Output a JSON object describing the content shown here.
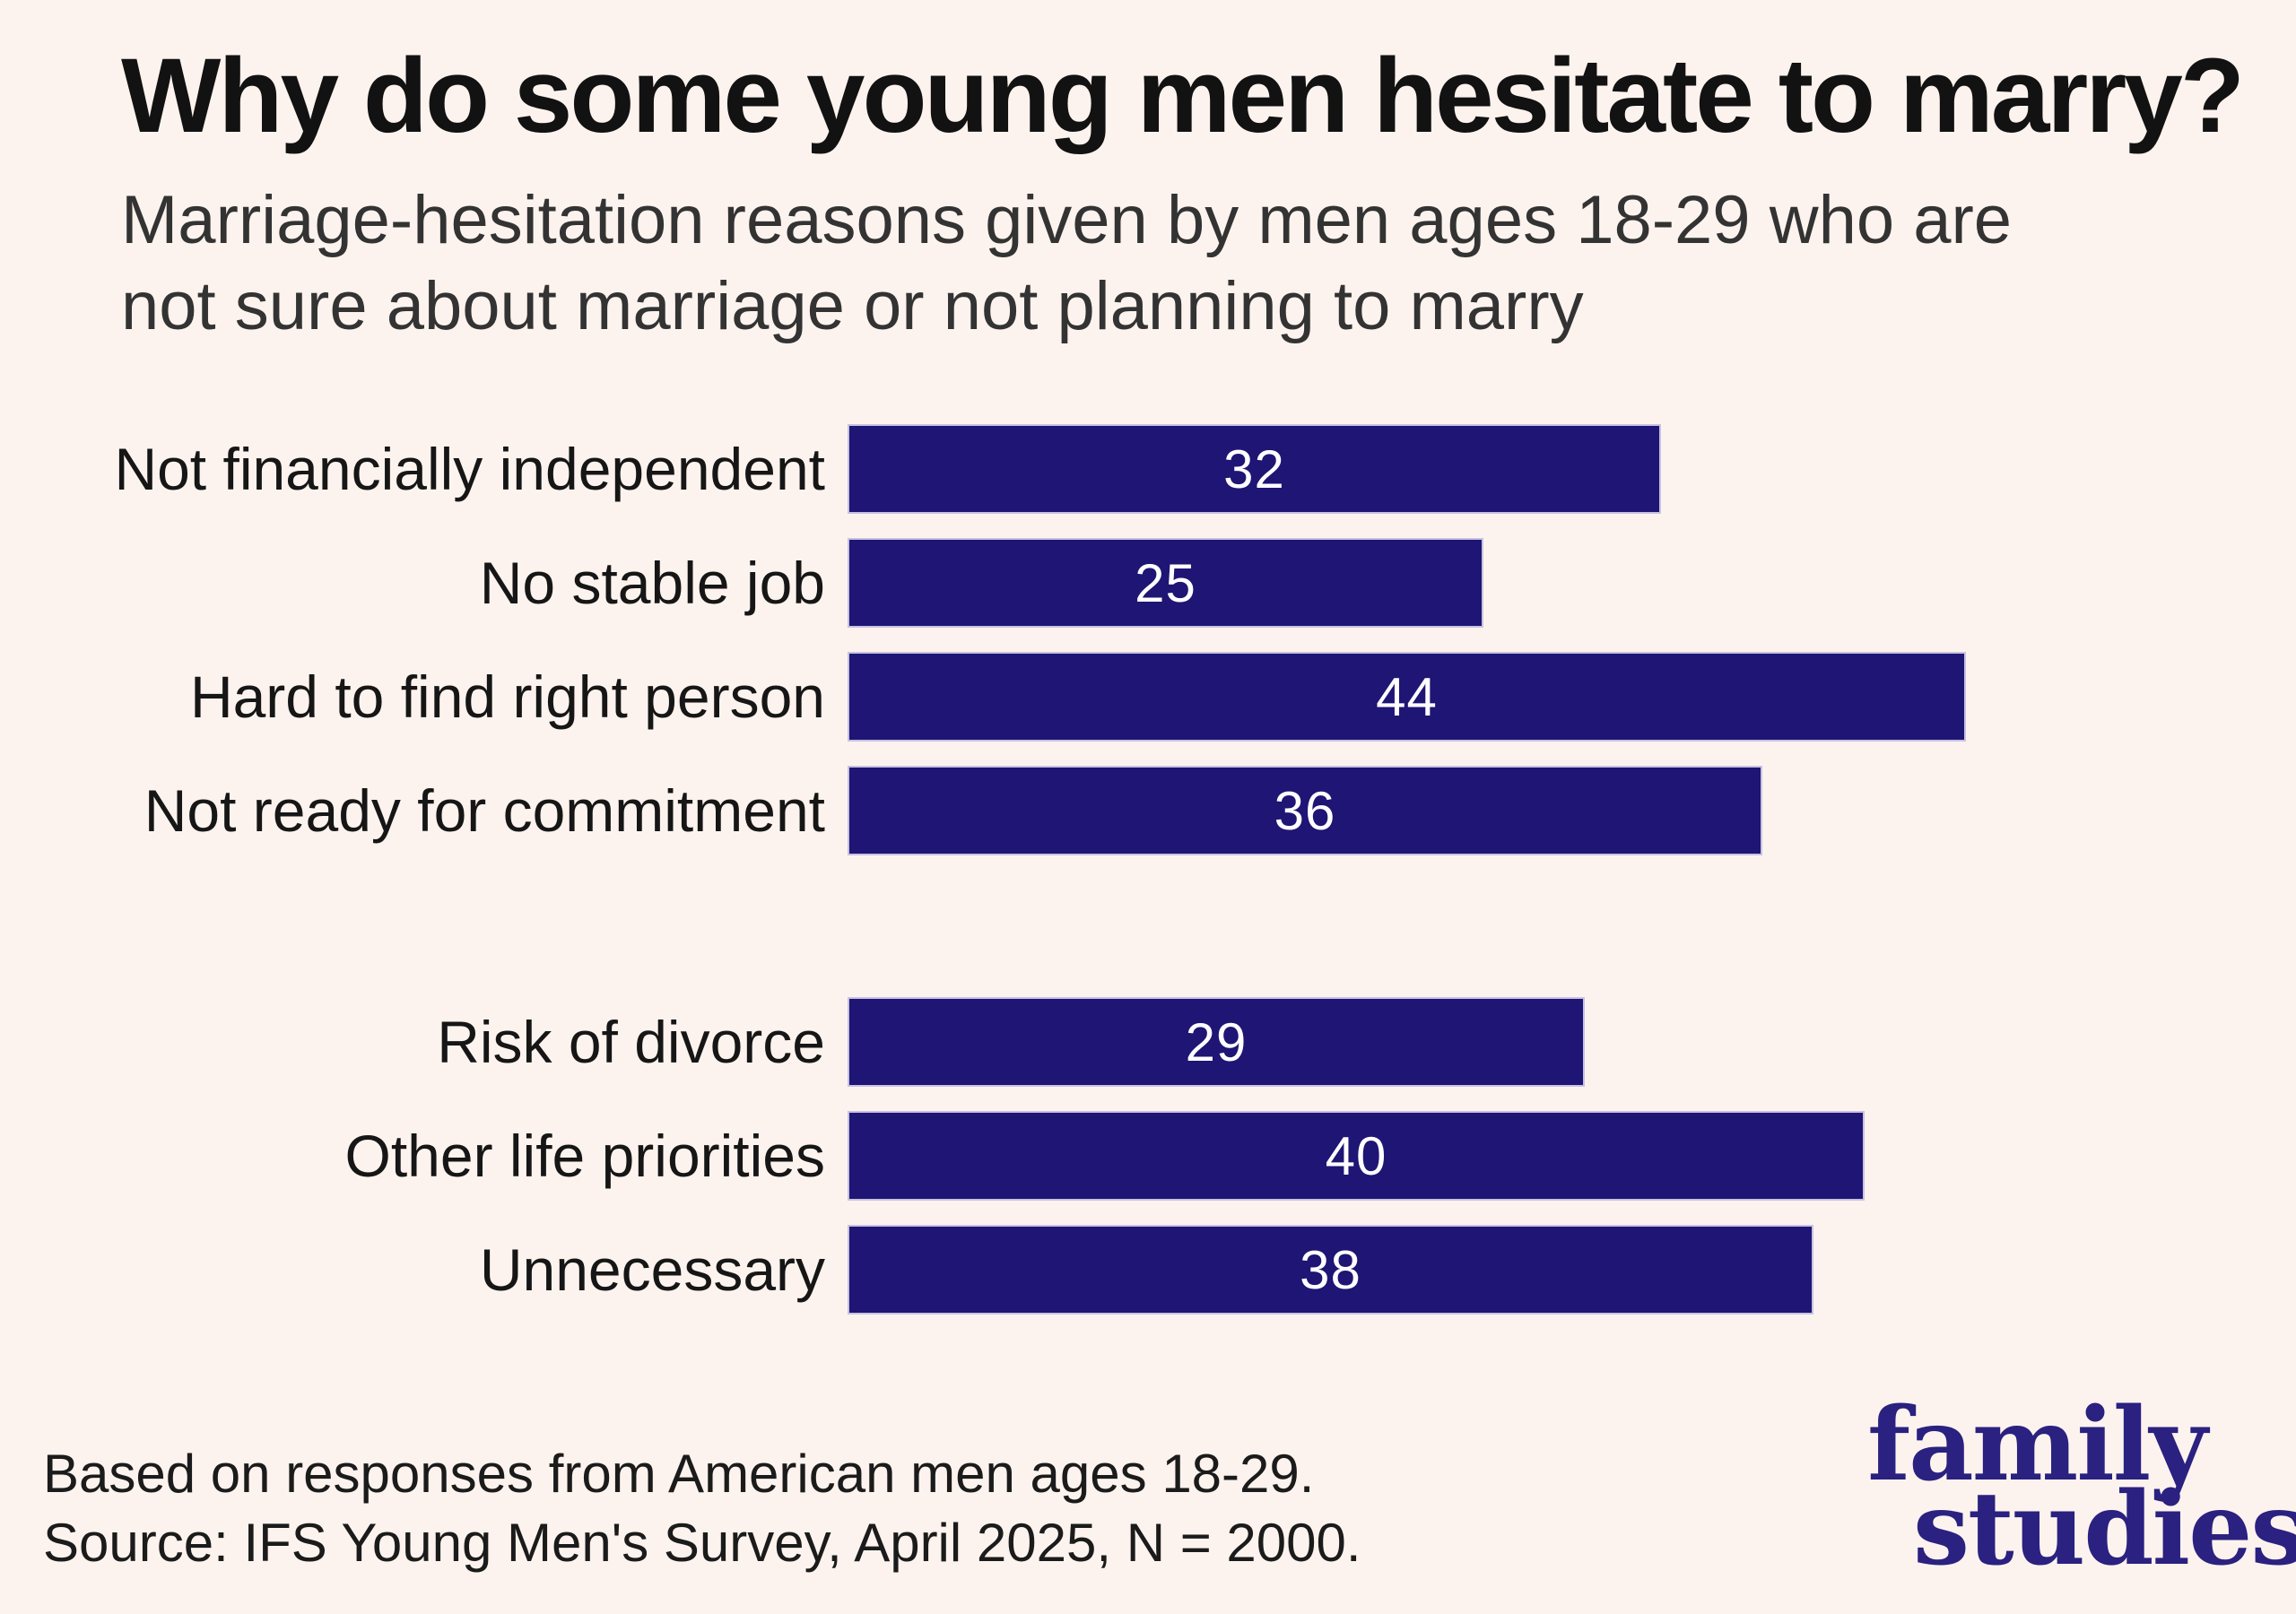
{
  "page": {
    "background_color": "#fdf3ee"
  },
  "header": {
    "title": "Why do some young men hesitate to marry?",
    "subtitle_line1": "Marriage-hesitation reasons given by men ages 18-29 who are",
    "subtitle_line2": "not sure about marriage or not planning to marry"
  },
  "chart_data": {
    "type": "bar",
    "orientation": "horizontal",
    "title": "Why do some young men hesitate to marry?",
    "subtitle": "Marriage-hesitation reasons given by men ages 18-29 who are not sure about marriage or not planning to marry",
    "xlabel": "",
    "ylabel": "",
    "xlim": [
      0,
      44
    ],
    "grid": false,
    "legend": "none",
    "axes_shown": false,
    "value_labels": "centered-white",
    "bar_color": "#1e1575",
    "bar_edge_color": "#c7c2e2",
    "value_label_color": "#ffffff",
    "categories": [
      "Not financially independent",
      "No stable job",
      "Hard to find right person",
      "Not ready for commitment",
      "Risk of divorce",
      "Other life priorities",
      "Unnecessary"
    ],
    "values": [
      32,
      25,
      44,
      36,
      29,
      40,
      38
    ],
    "groups": [
      {
        "name": "group-1",
        "rows": [
          {
            "label": "Not financially independent",
            "value": 32
          },
          {
            "label": "No stable job",
            "value": 25
          },
          {
            "label": "Hard to find right person",
            "value": 44
          },
          {
            "label": "Not ready for commitment",
            "value": 36
          }
        ]
      },
      {
        "name": "group-2",
        "rows": [
          {
            "label": "Risk of divorce",
            "value": 29
          },
          {
            "label": "Other life priorities",
            "value": 40
          },
          {
            "label": "Unnecessary",
            "value": 38
          }
        ]
      }
    ]
  },
  "footer": {
    "line1": "Based on responses from American men ages 18-29.",
    "line2": "Source: IFS Young Men's Survey, April 2025, N = 2000."
  },
  "logo": {
    "line1": "family",
    "line2": "studies",
    "color": "#2a2180"
  }
}
